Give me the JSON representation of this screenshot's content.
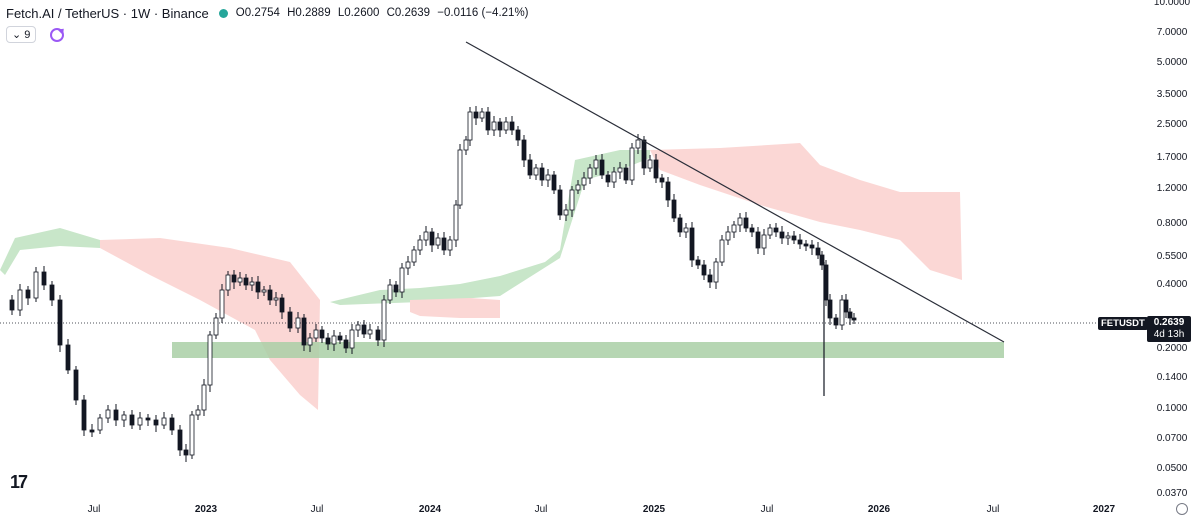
{
  "header": {
    "title": "Fetch.AI / TetherUS · 1W · Binance",
    "ohlc": {
      "open": "O0.2754",
      "high": "H0.2889",
      "low": "L0.2600",
      "close": "C0.2639",
      "change": "−0.0116 (−4.21%)"
    }
  },
  "indicator": {
    "pill_label": "9"
  },
  "price_badge": {
    "symbol": "FETUSDT",
    "price": "0.2639",
    "countdown": "4d 13h"
  },
  "colors": {
    "up": "#131722",
    "down": "#131722",
    "support_zone": "#a9cfa6",
    "cloud_green": "#c8e6c9",
    "cloud_red": "#fbd7d5",
    "trendline": "#2a2e39"
  },
  "icons": {
    "logo": "tradingview-logo-icon",
    "settings": "settings-icon",
    "refresh": "refresh-icon",
    "chevron": "chevron-down-icon"
  },
  "chart_data": {
    "type": "candlestick",
    "y_scale": "log",
    "y_ticks": [
      "10.0000",
      "7.0000",
      "5.0000",
      "3.5000",
      "2.5000",
      "1.7000",
      "1.2000",
      "0.8000",
      "0.5500",
      "0.4000",
      "0.2639",
      "0.2000",
      "0.1400",
      "0.1000",
      "0.0700",
      "0.0500",
      "0.0370"
    ],
    "x_ticks": [
      "Jul",
      "2023",
      "Jul",
      "2024",
      "Jul",
      "2025",
      "Jul",
      "2026",
      "Jul",
      "2027"
    ],
    "trendline": {
      "from": [
        "2024-01",
        6.2
      ],
      "to": [
        "2026-07",
        0.21
      ]
    },
    "support_zone": {
      "low": 0.185,
      "high": 0.215
    },
    "last_price": 0.2639
  }
}
